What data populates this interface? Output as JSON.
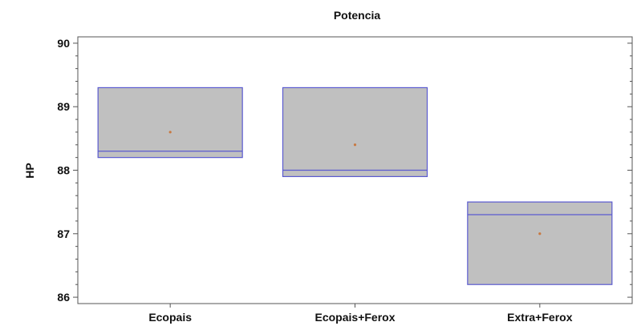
{
  "chart_data": {
    "type": "boxplot",
    "title": "Potencia",
    "xlabel": "",
    "ylabel": "HP",
    "ylim": [
      85.9,
      90.1
    ],
    "yticks": [
      86,
      87,
      88,
      89,
      90
    ],
    "categories": [
      "Ecopais",
      "Ecopais+Ferox",
      "Extra+Ferox"
    ],
    "boxes": [
      {
        "category": "Ecopais",
        "min": 88.2,
        "q1": 88.2,
        "median": 88.3,
        "q3": 89.3,
        "max": 89.3,
        "mean": 88.6
      },
      {
        "category": "Ecopais+Ferox",
        "min": 87.9,
        "q1": 87.9,
        "median": 88.0,
        "q3": 89.3,
        "max": 89.3,
        "mean": 88.4
      },
      {
        "category": "Extra+Ferox",
        "min": 86.2,
        "q1": 86.2,
        "median": 87.3,
        "q3": 87.5,
        "max": 87.5,
        "mean": 87.0
      }
    ],
    "grid": false,
    "colors": {
      "box_fill": "#c0c0c0",
      "box_stroke": "#5a5ad0",
      "mean_marker": "#c87840",
      "axis": "#555555"
    }
  }
}
